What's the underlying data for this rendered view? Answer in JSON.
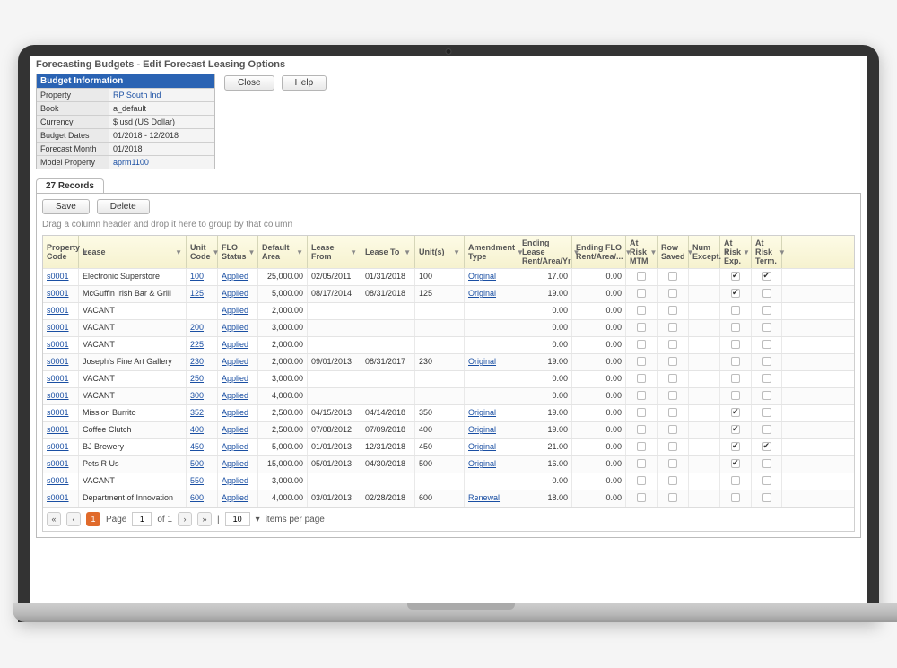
{
  "page_title": "Forecasting Budgets - Edit Forecast Leasing Options",
  "panel": {
    "header": "Budget Information",
    "rows": [
      {
        "label": "Property",
        "value": "RP South Ind",
        "link": true
      },
      {
        "label": "Book",
        "value": "a_default"
      },
      {
        "label": "Currency",
        "value": "$ usd (US Dollar)"
      },
      {
        "label": "Budget Dates",
        "value": "01/2018 - 12/2018"
      },
      {
        "label": "Forecast Month",
        "value": "01/2018"
      },
      {
        "label": "Model Property",
        "value": "aprm1100",
        "link": true
      }
    ]
  },
  "top_buttons": {
    "close": "Close",
    "help": "Help"
  },
  "tab_label": "27 Records",
  "action_buttons": {
    "save": "Save",
    "delete": "Delete"
  },
  "group_hint": "Drag a column header and drop it here to group by that column",
  "columns": [
    "Property Code",
    "Lease",
    "Unit Code",
    "FLO Status",
    "Default Area",
    "Lease From",
    "Lease To",
    "Unit(s)",
    "Amendment Type",
    "Ending Lease Rent/Area/Yr",
    "Ending FLO Rent/Area/...",
    "At Risk MTM",
    "Row Saved",
    "Num Except.",
    "At Risk Exp.",
    "At Risk Term."
  ],
  "rows": [
    {
      "pc": "s0001",
      "lease": "Electronic Superstore",
      "unit": "100",
      "status": "Applied",
      "area": "25,000.00",
      "from": "02/05/2011",
      "to": "01/31/2018",
      "units": "100",
      "amend": "Original",
      "el": "17.00",
      "ef": "0.00",
      "mtm": false,
      "saved": false,
      "exc": "",
      "risk": true,
      "term": true
    },
    {
      "pc": "s0001",
      "lease": "McGuffin Irish Bar & Grill",
      "unit": "125",
      "status": "Applied",
      "area": "5,000.00",
      "from": "08/17/2014",
      "to": "08/31/2018",
      "units": "125",
      "amend": "Original",
      "el": "19.00",
      "ef": "0.00",
      "mtm": false,
      "saved": false,
      "exc": "",
      "risk": true,
      "term": false
    },
    {
      "pc": "s0001",
      "lease": "VACANT",
      "unit": "",
      "status": "Applied",
      "area": "2,000.00",
      "from": "",
      "to": "",
      "units": "",
      "amend": "",
      "el": "0.00",
      "ef": "0.00",
      "mtm": false,
      "saved": false,
      "exc": "",
      "risk": false,
      "term": false
    },
    {
      "pc": "s0001",
      "lease": "VACANT",
      "unit": "200",
      "status": "Applied",
      "area": "3,000.00",
      "from": "",
      "to": "",
      "units": "",
      "amend": "",
      "el": "0.00",
      "ef": "0.00",
      "mtm": false,
      "saved": false,
      "exc": "",
      "risk": false,
      "term": false
    },
    {
      "pc": "s0001",
      "lease": "VACANT",
      "unit": "225",
      "status": "Applied",
      "area": "2,000.00",
      "from": "",
      "to": "",
      "units": "",
      "amend": "",
      "el": "0.00",
      "ef": "0.00",
      "mtm": false,
      "saved": false,
      "exc": "",
      "risk": false,
      "term": false
    },
    {
      "pc": "s0001",
      "lease": "Joseph's Fine Art Gallery",
      "unit": "230",
      "status": "Applied",
      "area": "2,000.00",
      "from": "09/01/2013",
      "to": "08/31/2017",
      "units": "230",
      "amend": "Original",
      "el": "19.00",
      "ef": "0.00",
      "mtm": false,
      "saved": false,
      "exc": "",
      "risk": false,
      "term": false
    },
    {
      "pc": "s0001",
      "lease": "VACANT",
      "unit": "250",
      "status": "Applied",
      "area": "3,000.00",
      "from": "",
      "to": "",
      "units": "",
      "amend": "",
      "el": "0.00",
      "ef": "0.00",
      "mtm": false,
      "saved": false,
      "exc": "",
      "risk": false,
      "term": false
    },
    {
      "pc": "s0001",
      "lease": "VACANT",
      "unit": "300",
      "status": "Applied",
      "area": "4,000.00",
      "from": "",
      "to": "",
      "units": "",
      "amend": "",
      "el": "0.00",
      "ef": "0.00",
      "mtm": false,
      "saved": false,
      "exc": "",
      "risk": false,
      "term": false
    },
    {
      "pc": "s0001",
      "lease": "Mission Burrito",
      "unit": "352",
      "status": "Applied",
      "area": "2,500.00",
      "from": "04/15/2013",
      "to": "04/14/2018",
      "units": "350",
      "amend": "Original",
      "el": "19.00",
      "ef": "0.00",
      "mtm": false,
      "saved": false,
      "exc": "",
      "risk": true,
      "term": false
    },
    {
      "pc": "s0001",
      "lease": "Coffee Clutch",
      "unit": "400",
      "status": "Applied",
      "area": "2,500.00",
      "from": "07/08/2012",
      "to": "07/09/2018",
      "units": "400",
      "amend": "Original",
      "el": "19.00",
      "ef": "0.00",
      "mtm": false,
      "saved": false,
      "exc": "",
      "risk": true,
      "term": false
    },
    {
      "pc": "s0001",
      "lease": "BJ Brewery",
      "unit": "450",
      "status": "Applied",
      "area": "5,000.00",
      "from": "01/01/2013",
      "to": "12/31/2018",
      "units": "450",
      "amend": "Original",
      "el": "21.00",
      "ef": "0.00",
      "mtm": false,
      "saved": false,
      "exc": "",
      "risk": true,
      "term": true
    },
    {
      "pc": "s0001",
      "lease": "Pets R Us",
      "unit": "500",
      "status": "Applied",
      "area": "15,000.00",
      "from": "05/01/2013",
      "to": "04/30/2018",
      "units": "500",
      "amend": "Original",
      "el": "16.00",
      "ef": "0.00",
      "mtm": false,
      "saved": false,
      "exc": "",
      "risk": true,
      "term": false
    },
    {
      "pc": "s0001",
      "lease": "VACANT",
      "unit": "550",
      "status": "Applied",
      "area": "3,000.00",
      "from": "",
      "to": "",
      "units": "",
      "amend": "",
      "el": "0.00",
      "ef": "0.00",
      "mtm": false,
      "saved": false,
      "exc": "",
      "risk": false,
      "term": false
    },
    {
      "pc": "s0001",
      "lease": "Department of Innovation",
      "unit": "600",
      "status": "Applied",
      "area": "4,000.00",
      "from": "03/01/2013",
      "to": "02/28/2018",
      "units": "600",
      "amend": "Renewal",
      "el": "18.00",
      "ef": "0.00",
      "mtm": false,
      "saved": false,
      "exc": "",
      "risk": false,
      "term": false
    }
  ],
  "pager": {
    "page": "1",
    "of": "of 1",
    "sep": "|",
    "items": "10",
    "per": "items per page"
  }
}
